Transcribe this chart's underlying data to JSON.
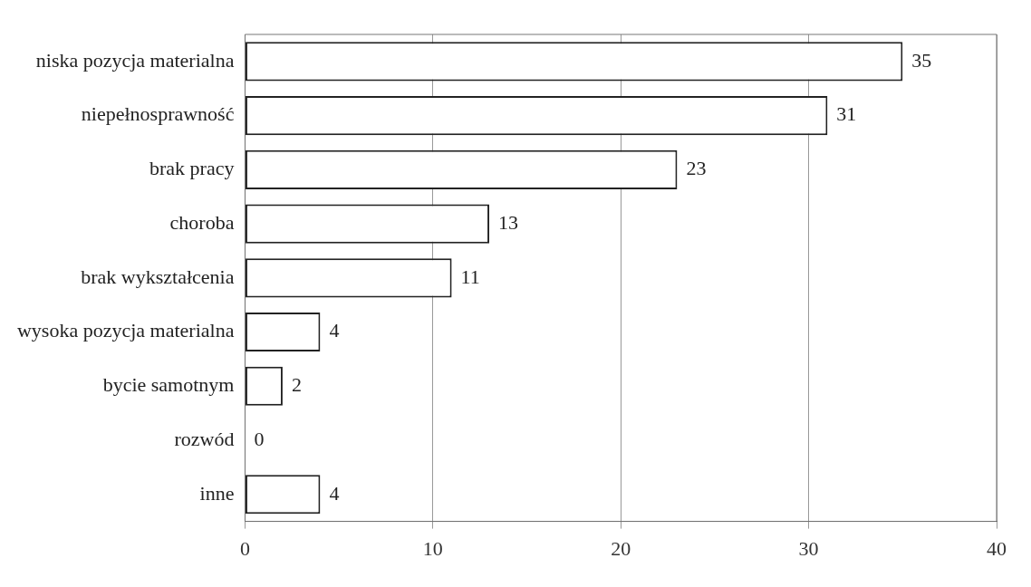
{
  "chart_data": {
    "type": "bar",
    "orientation": "horizontal",
    "categories": [
      "niska pozycja materialna",
      "niepełnosprawność",
      "brak pracy",
      "choroba",
      "brak wykształcenia",
      "wysoka pozycja materialna",
      "bycie samotnym",
      "rozwód",
      "inne"
    ],
    "values": [
      35,
      31,
      23,
      13,
      11,
      4,
      2,
      0,
      4
    ],
    "color": "#ffffff",
    "xlim": [
      0,
      40
    ],
    "xticks": [
      0,
      10,
      20,
      30,
      40
    ],
    "grid": "x",
    "data_labels": true,
    "legend": false
  }
}
